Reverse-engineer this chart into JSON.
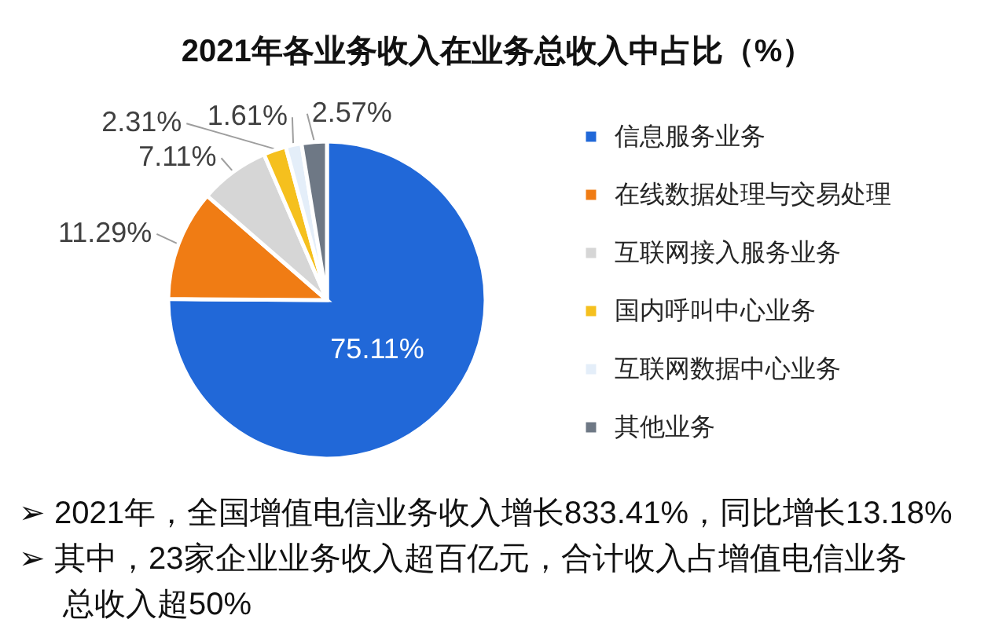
{
  "chart_data": {
    "type": "pie",
    "title": "2021年各业务收入在业务总收入中占比（%）",
    "categories": [
      "信息服务业务",
      "在线数据处理与交易处理",
      "互联网接入服务业务",
      "国内呼叫中心业务",
      "互联网数据中心业务",
      "其他业务"
    ],
    "values": [
      75.11,
      11.29,
      7.11,
      2.31,
      1.61,
      2.57
    ],
    "colors": [
      "#2168d8",
      "#f07c14",
      "#d6d6d6",
      "#f5c01e",
      "#e4eef9",
      "#6e7885"
    ],
    "value_labels": [
      "75.11%",
      "11.29%",
      "7.11%",
      "2.31%",
      "1.61%",
      "2.57%"
    ],
    "legend": "right",
    "annotations": [
      "➢ 2021年，全国增值电信业务收入增长833.41%，同比增长13.18%",
      "➢ 其中，23家企业业务收入超百亿元，合计收入占增值电信业务",
      "总收入超50%"
    ]
  }
}
